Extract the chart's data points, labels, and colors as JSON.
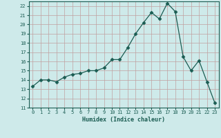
{
  "xlabel": "Humidex (Indice chaleur)",
  "x": [
    0,
    1,
    2,
    3,
    4,
    5,
    6,
    7,
    8,
    9,
    10,
    11,
    12,
    13,
    14,
    15,
    16,
    17,
    18,
    19,
    20,
    21,
    22,
    23
  ],
  "y": [
    13.3,
    14.0,
    14.0,
    13.8,
    14.3,
    14.6,
    14.7,
    15.0,
    15.0,
    15.3,
    16.2,
    16.2,
    17.5,
    19.0,
    20.2,
    21.3,
    20.6,
    22.3,
    21.4,
    16.5,
    15.0,
    16.1,
    13.8,
    11.5
  ],
  "line_color": "#1a5c52",
  "marker": "D",
  "marker_size": 2.5,
  "bg_color": "#ceeaea",
  "grid_color": "#c0a0a0",
  "ylim": [
    11,
    22.5
  ],
  "xlim": [
    -0.5,
    23.5
  ],
  "yticks": [
    11,
    12,
    13,
    14,
    15,
    16,
    17,
    18,
    19,
    20,
    21,
    22
  ],
  "xticks": [
    0,
    1,
    2,
    3,
    4,
    5,
    6,
    7,
    8,
    9,
    10,
    11,
    12,
    13,
    14,
    15,
    16,
    17,
    18,
    19,
    20,
    21,
    22,
    23
  ]
}
